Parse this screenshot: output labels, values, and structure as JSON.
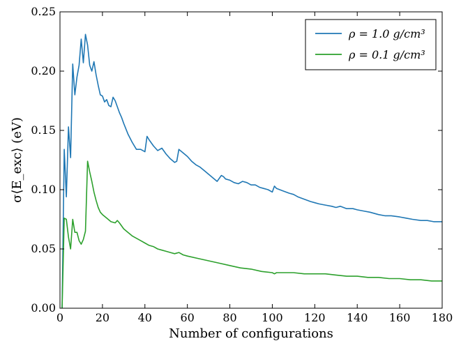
{
  "chart_data": {
    "type": "line",
    "title": "",
    "xlabel": "Number of configurations",
    "ylabel": "σ⟨E_exc⟩ (eV)",
    "xlim": [
      0,
      180
    ],
    "ylim": [
      0.0,
      0.25
    ],
    "x_ticks": [
      0,
      20,
      40,
      60,
      80,
      100,
      120,
      140,
      160,
      180
    ],
    "y_ticks": [
      0.0,
      0.05,
      0.1,
      0.15,
      0.2,
      0.25
    ],
    "x_tick_labels": [
      "0",
      "20",
      "40",
      "60",
      "80",
      "100",
      "120",
      "140",
      "160",
      "180"
    ],
    "y_tick_labels": [
      "0.00",
      "0.05",
      "0.10",
      "0.15",
      "0.20",
      "0.25"
    ],
    "grid": false,
    "legend_position": "top-right",
    "series": [
      {
        "name": "ρ = 1.0 g/cm³",
        "color": "#1f77b4",
        "x": [
          1,
          2,
          3,
          4,
          5,
          6,
          7,
          8,
          9,
          10,
          11,
          12,
          13,
          14,
          15,
          16,
          17,
          18,
          19,
          20,
          21,
          22,
          23,
          24,
          25,
          26,
          27,
          28,
          29,
          30,
          32,
          34,
          36,
          38,
          40,
          41,
          42,
          44,
          46,
          48,
          50,
          52,
          54,
          55,
          56,
          58,
          60,
          62,
          64,
          66,
          68,
          70,
          72,
          74,
          76,
          77,
          78,
          80,
          82,
          84,
          86,
          88,
          90,
          92,
          94,
          96,
          98,
          100,
          101,
          102,
          105,
          108,
          110,
          112,
          115,
          118,
          120,
          122,
          125,
          128,
          130,
          132,
          135,
          138,
          140,
          143,
          146,
          150,
          153,
          156,
          160,
          163,
          166,
          170,
          173,
          176,
          180
        ],
        "y": [
          0.0,
          0.134,
          0.094,
          0.153,
          0.127,
          0.206,
          0.18,
          0.195,
          0.205,
          0.227,
          0.207,
          0.231,
          0.222,
          0.205,
          0.2,
          0.208,
          0.197,
          0.188,
          0.18,
          0.179,
          0.174,
          0.176,
          0.171,
          0.17,
          0.178,
          0.175,
          0.17,
          0.165,
          0.161,
          0.156,
          0.147,
          0.14,
          0.134,
          0.134,
          0.132,
          0.145,
          0.142,
          0.137,
          0.133,
          0.135,
          0.13,
          0.126,
          0.123,
          0.124,
          0.134,
          0.131,
          0.128,
          0.124,
          0.121,
          0.119,
          0.116,
          0.113,
          0.11,
          0.107,
          0.112,
          0.111,
          0.109,
          0.108,
          0.106,
          0.105,
          0.107,
          0.106,
          0.104,
          0.104,
          0.102,
          0.101,
          0.1,
          0.098,
          0.103,
          0.101,
          0.099,
          0.097,
          0.096,
          0.094,
          0.092,
          0.09,
          0.089,
          0.088,
          0.087,
          0.086,
          0.085,
          0.086,
          0.084,
          0.084,
          0.083,
          0.082,
          0.081,
          0.079,
          0.078,
          0.078,
          0.077,
          0.076,
          0.075,
          0.074,
          0.074,
          0.073,
          0.073
        ]
      },
      {
        "name": "ρ = 0.1 g/cm³",
        "color": "#2ca02c",
        "x": [
          1,
          2,
          3,
          4,
          5,
          6,
          7,
          8,
          9,
          10,
          11,
          12,
          13,
          14,
          15,
          16,
          17,
          18,
          19,
          20,
          22,
          24,
          26,
          27,
          28,
          30,
          32,
          34,
          36,
          38,
          40,
          42,
          44,
          46,
          48,
          50,
          52,
          54,
          56,
          58,
          60,
          65,
          70,
          75,
          80,
          85,
          90,
          95,
          100,
          101,
          102,
          105,
          108,
          110,
          115,
          120,
          125,
          130,
          135,
          140,
          145,
          150,
          155,
          160,
          165,
          170,
          175,
          180
        ],
        "y": [
          0.0,
          0.076,
          0.075,
          0.06,
          0.05,
          0.075,
          0.064,
          0.064,
          0.057,
          0.054,
          0.058,
          0.065,
          0.124,
          0.115,
          0.107,
          0.098,
          0.091,
          0.085,
          0.081,
          0.079,
          0.076,
          0.073,
          0.072,
          0.074,
          0.072,
          0.067,
          0.064,
          0.061,
          0.059,
          0.057,
          0.055,
          0.053,
          0.052,
          0.05,
          0.049,
          0.048,
          0.047,
          0.046,
          0.047,
          0.045,
          0.044,
          0.042,
          0.04,
          0.038,
          0.036,
          0.034,
          0.033,
          0.031,
          0.03,
          0.029,
          0.03,
          0.03,
          0.03,
          0.03,
          0.029,
          0.029,
          0.029,
          0.028,
          0.027,
          0.027,
          0.026,
          0.026,
          0.025,
          0.025,
          0.024,
          0.024,
          0.023,
          0.023
        ]
      }
    ]
  }
}
